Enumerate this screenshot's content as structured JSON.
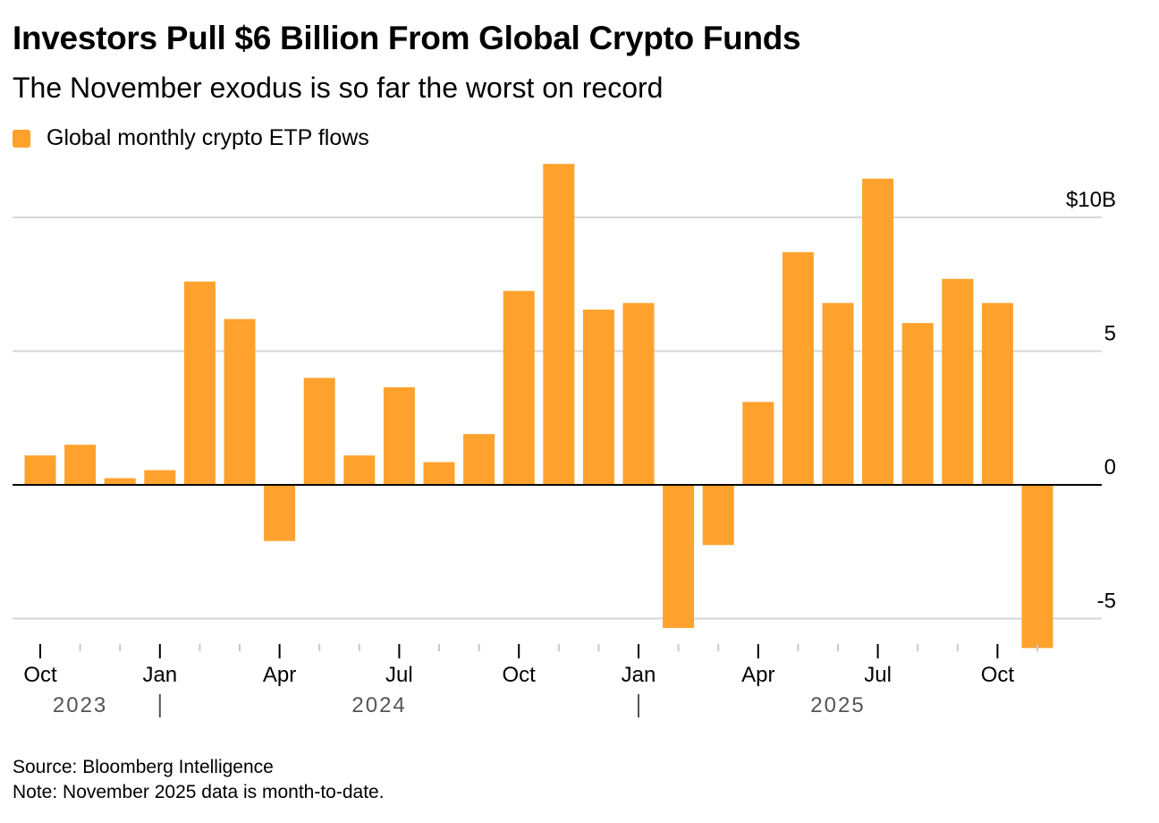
{
  "header": {
    "title": "Investors Pull $6 Billion From Global Crypto Funds",
    "subtitle": "The November exodus is so far the worst on record"
  },
  "legend": {
    "label": "Global monthly crypto ETP flows",
    "color": "#ffa22d"
  },
  "colors": {
    "bar": "#ffa22d",
    "grid": "#d6d6d6",
    "zero_line": "#000000",
    "tick_text": "#000000",
    "year_text": "#555555"
  },
  "chart_data": {
    "type": "bar",
    "categories": [
      "Oct 2023",
      "Nov 2023",
      "Dec 2023",
      "Jan 2024",
      "Feb 2024",
      "Mar 2024",
      "Apr 2024",
      "May 2024",
      "Jun 2024",
      "Jul 2024",
      "Aug 2024",
      "Sep 2024",
      "Oct 2024",
      "Nov 2024",
      "Dec 2024",
      "Jan 2025",
      "Feb 2025",
      "Mar 2025",
      "Apr 2025",
      "May 2025",
      "Jun 2025",
      "Jul 2025",
      "Aug 2025",
      "Sep 2025",
      "Oct 2025",
      "Nov 2025"
    ],
    "series": [
      {
        "name": "Global monthly crypto ETP flows",
        "values": [
          1.1,
          1.5,
          0.25,
          0.55,
          7.6,
          6.2,
          -2.1,
          4.0,
          1.1,
          3.65,
          0.85,
          1.9,
          7.25,
          12.0,
          6.55,
          6.8,
          -5.35,
          -2.25,
          3.1,
          8.7,
          6.8,
          11.45,
          6.05,
          7.7,
          6.8,
          -6.1
        ]
      }
    ],
    "ylim": [
      -5.6,
      12.0
    ],
    "yticks": [
      {
        "value": 10,
        "label": "$10B"
      },
      {
        "value": 5,
        "label": "5"
      },
      {
        "value": 0,
        "label": "0"
      },
      {
        "value": -5,
        "label": "-5"
      }
    ],
    "xtick_labels": [
      {
        "index": 0,
        "label": "Oct"
      },
      {
        "index": 3,
        "label": "Jan"
      },
      {
        "index": 6,
        "label": "Apr"
      },
      {
        "index": 9,
        "label": "Jul"
      },
      {
        "index": 12,
        "label": "Oct"
      },
      {
        "index": 15,
        "label": "Jan"
      },
      {
        "index": 18,
        "label": "Apr"
      },
      {
        "index": 21,
        "label": "Jul"
      },
      {
        "index": 24,
        "label": "Oct"
      }
    ],
    "year_labels": [
      {
        "label": "2023",
        "from": 0,
        "to": 2
      },
      {
        "label": "2024",
        "from": 3,
        "to": 14
      },
      {
        "label": "2025",
        "from": 15,
        "to": 25
      }
    ],
    "grid": true,
    "legend_position": "top-left"
  },
  "footer": {
    "source": "Source: Bloomberg Intelligence",
    "note": "Note: November 2025 data is month-to-date."
  }
}
